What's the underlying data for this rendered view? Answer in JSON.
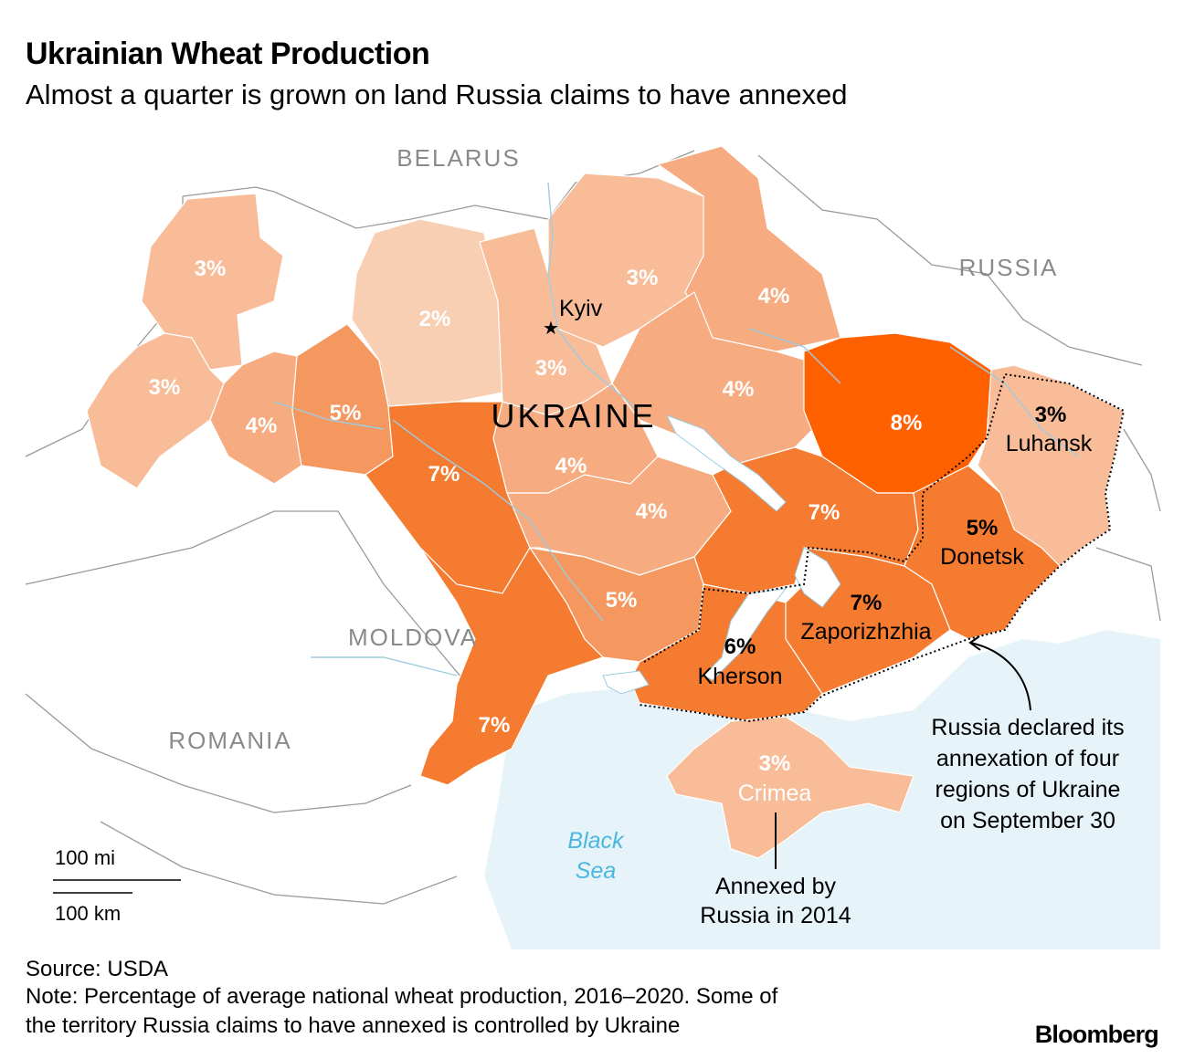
{
  "header": {
    "title": "Ukrainian Wheat Production",
    "subtitle": "Almost a quarter is grown on land Russia claims to have annexed"
  },
  "map": {
    "countries": {
      "belarus": "BELARUS",
      "russia": "RUSSIA",
      "moldova": "MOLDOVA",
      "romania": "ROMANIA",
      "ukraine": "UKRAINE"
    },
    "sea": {
      "line1": "Black",
      "line2": "Sea"
    },
    "capital": "Kyiv",
    "regions": [
      {
        "id": "volyn",
        "value": "3%"
      },
      {
        "id": "lviv",
        "value": "3%"
      },
      {
        "id": "ternopil",
        "value": "4%"
      },
      {
        "id": "khmelnytskyi",
        "value": "5%"
      },
      {
        "id": "zhytomyr",
        "value": "2%"
      },
      {
        "id": "kyiv",
        "value": "3%"
      },
      {
        "id": "chernihiv",
        "value": "3%"
      },
      {
        "id": "sumy",
        "value": "4%"
      },
      {
        "id": "poltava",
        "value": "4%"
      },
      {
        "id": "vinnytsia",
        "value": "7%"
      },
      {
        "id": "cherkasy",
        "value": "4%"
      },
      {
        "id": "kirovohrad",
        "value": "4%"
      },
      {
        "id": "kharkiv",
        "value": "8%"
      },
      {
        "id": "dnipropetrovsk",
        "value": "7%"
      },
      {
        "id": "mykolaiv",
        "value": "5%"
      },
      {
        "id": "odesa",
        "value": "7%"
      },
      {
        "id": "luhansk",
        "value": "3%",
        "name": "Luhansk"
      },
      {
        "id": "donetsk",
        "value": "5%",
        "name": "Donetsk"
      },
      {
        "id": "zaporizhzhia",
        "value": "7%",
        "name": "Zaporizhzhia"
      },
      {
        "id": "kherson",
        "value": "6%",
        "name": "Kherson"
      },
      {
        "id": "crimea",
        "value": "3%",
        "name": "Crimea"
      }
    ],
    "annotations": {
      "annexation": [
        "Russia declared its",
        "annexation of four",
        "regions of Ukraine",
        "on September 30"
      ],
      "crimea": [
        "Annexed by",
        "Russia in 2014"
      ]
    },
    "scale": {
      "miles": "100 mi",
      "km": "100 km"
    },
    "colors": {
      "p2": "#f9cfb3",
      "p3": "#f8bc98",
      "p4": "#f6ab80",
      "p5": "#f59860",
      "p6": "#f47e36",
      "p7": "#f47b30",
      "p8": "#ff6000",
      "sea": "#e6f3f9",
      "rivers": "#9ccde0",
      "borders": "#9a9a9a"
    }
  },
  "footer": {
    "source": "Source: USDA",
    "note_line1": "Note: Percentage of average national wheat production, 2016–2020. Some of",
    "note_line2": "the territory Russia claims to have annexed is controlled by Ukraine",
    "brand": "Bloomberg"
  }
}
